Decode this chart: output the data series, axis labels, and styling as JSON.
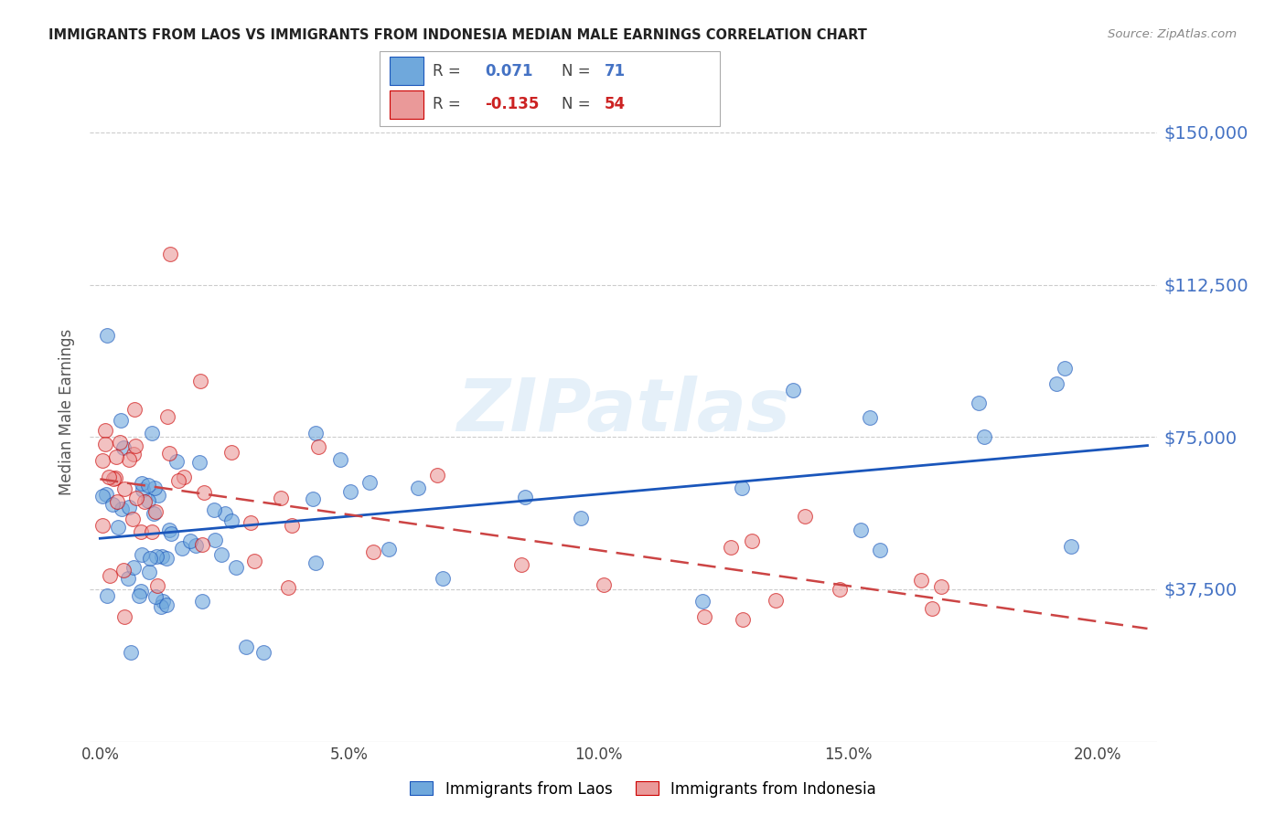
{
  "title": "IMMIGRANTS FROM LAOS VS IMMIGRANTS FROM INDONESIA MEDIAN MALE EARNINGS CORRELATION CHART",
  "source": "Source: ZipAtlas.com",
  "ylabel": "Median Male Earnings",
  "ytick_labels": [
    "$37,500",
    "$75,000",
    "$112,500",
    "$150,000"
  ],
  "ytick_vals": [
    37500,
    75000,
    112500,
    150000
  ],
  "xtick_labels": [
    "0.0%",
    "5.0%",
    "10.0%",
    "15.0%",
    "20.0%"
  ],
  "xtick_vals": [
    0.0,
    0.05,
    0.1,
    0.15,
    0.2
  ],
  "ylim": [
    0,
    162500
  ],
  "xlim": [
    -0.002,
    0.212
  ],
  "laos_R": 0.071,
  "laos_N": 71,
  "indonesia_R": -0.135,
  "indonesia_N": 54,
  "laos_color": "#6fa8dc",
  "laos_edge_color": "#1a56bb",
  "indonesia_color": "#ea9999",
  "indonesia_edge_color": "#cc0000",
  "laos_line_color": "#1a56bb",
  "indonesia_line_color": "#cc4444",
  "watermark": "ZIPatlas",
  "grid_color": "#cccccc",
  "background": "#ffffff"
}
